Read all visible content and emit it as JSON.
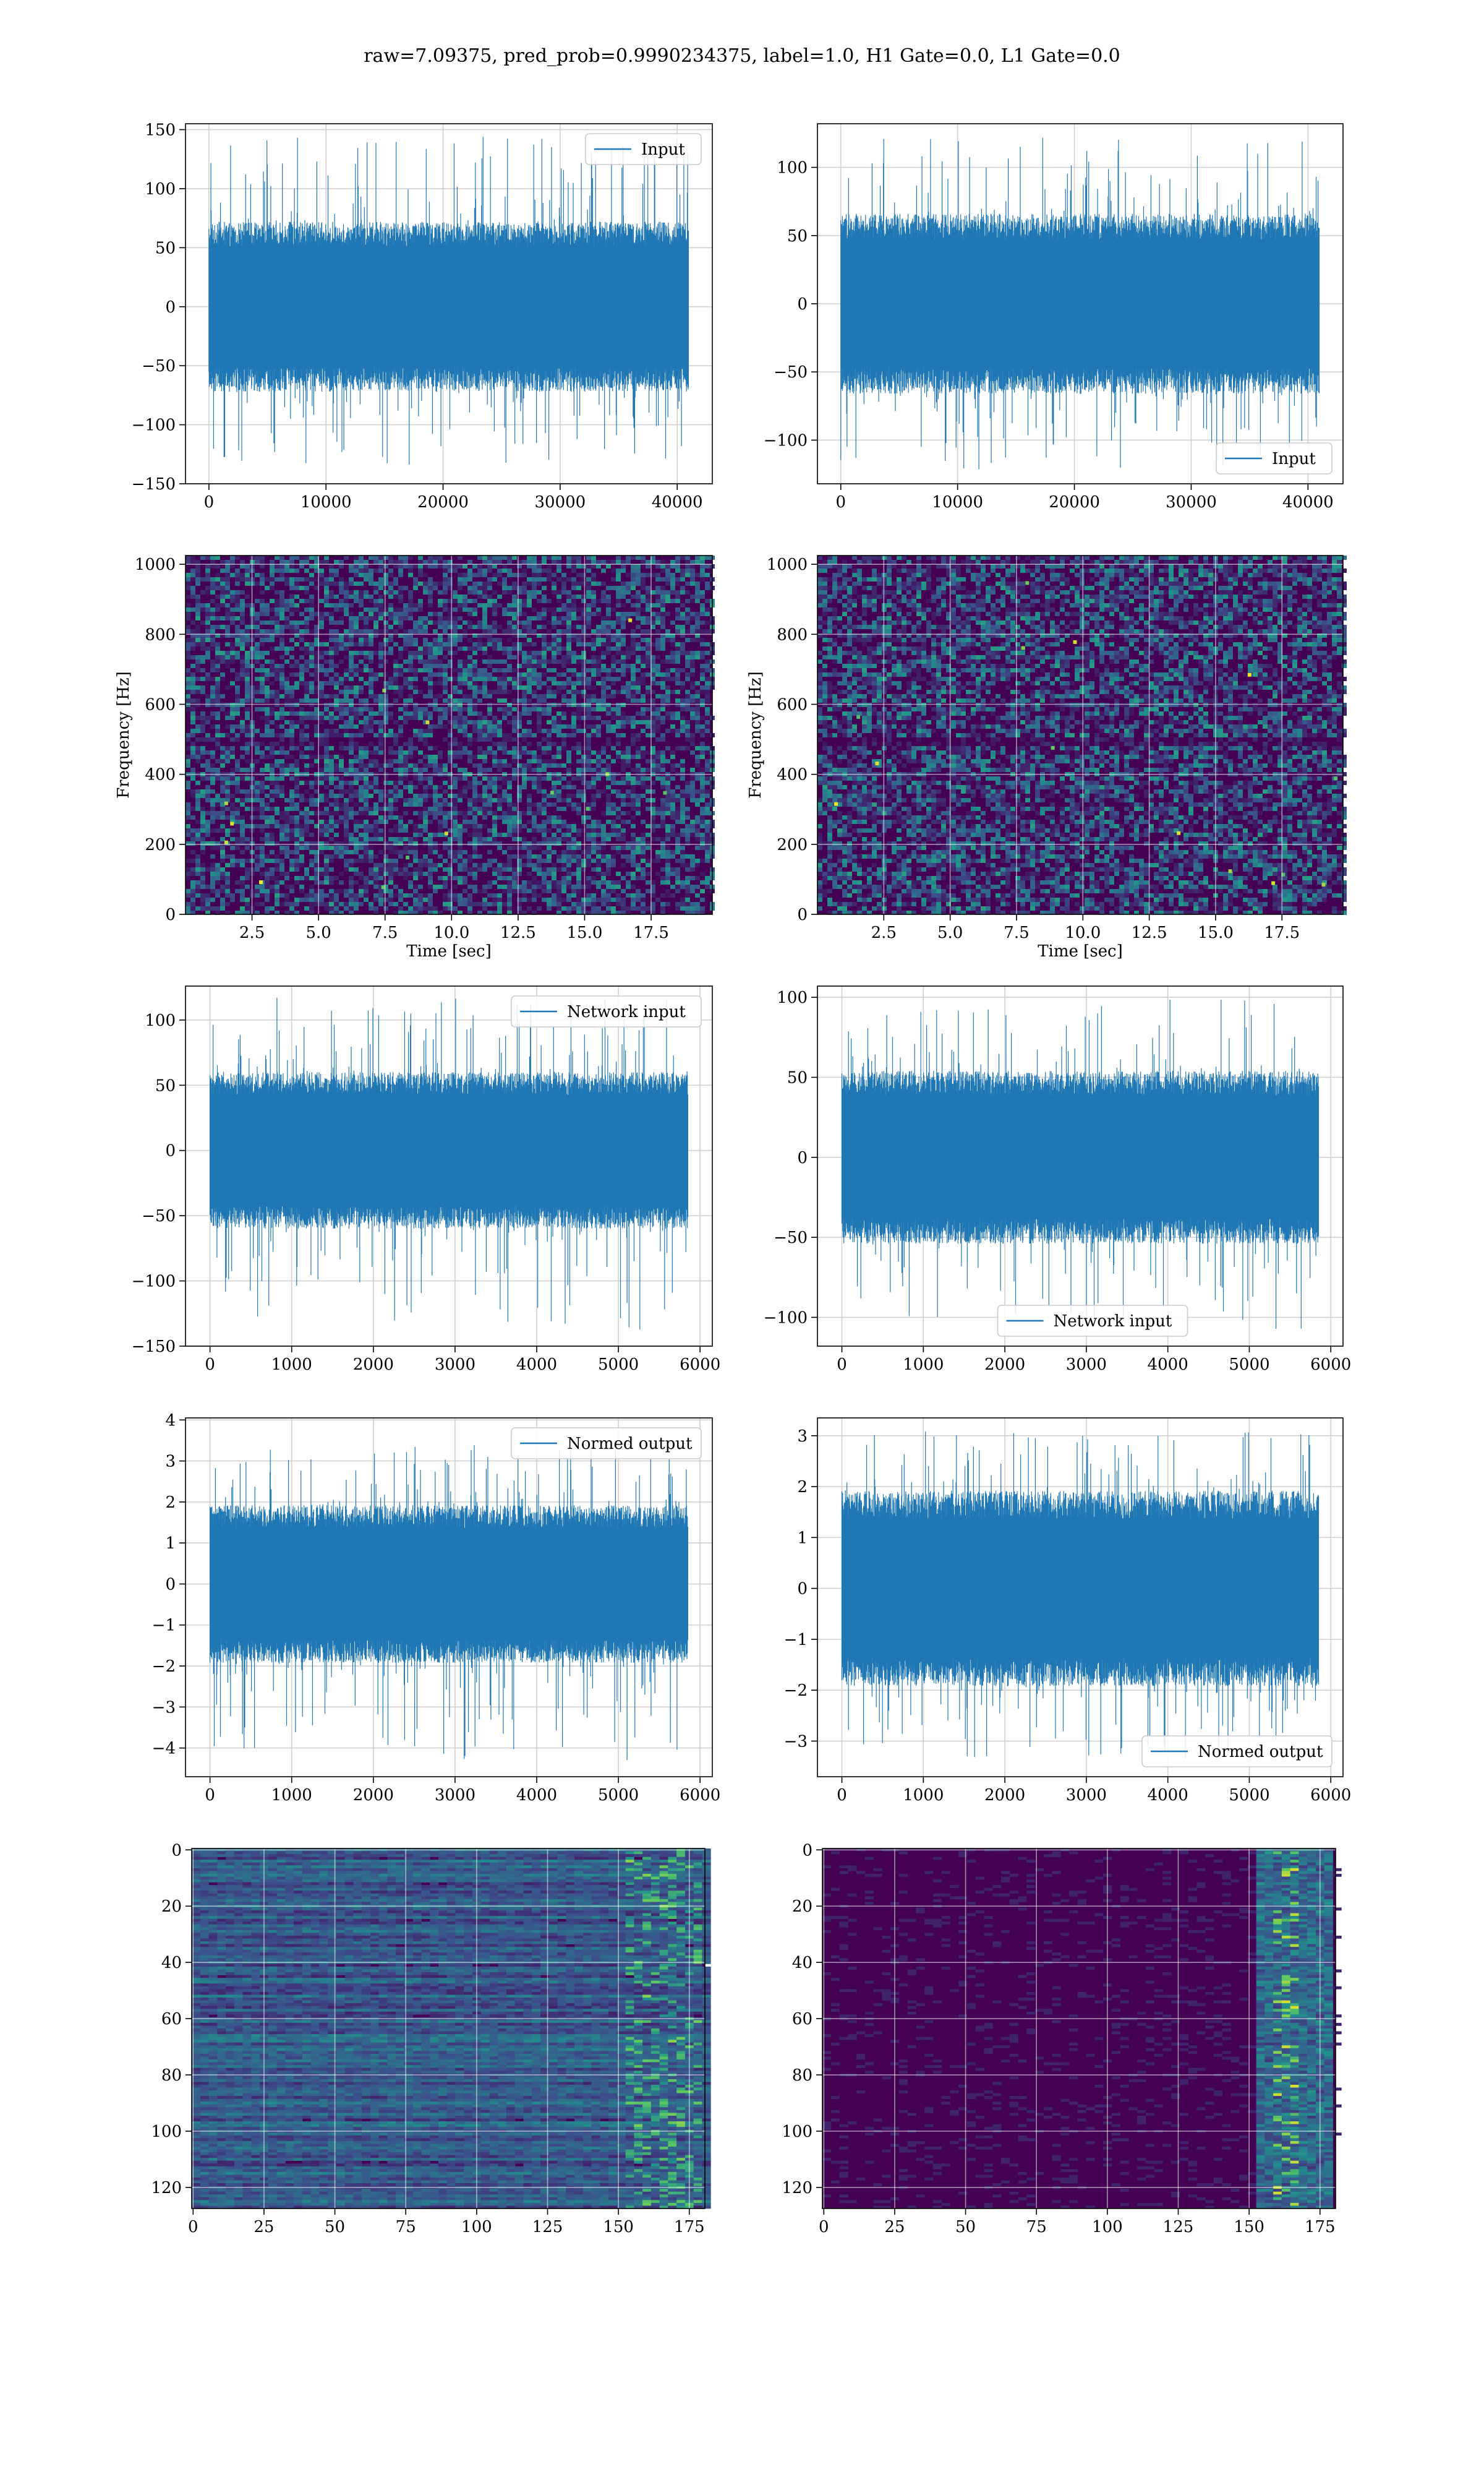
{
  "figure": {
    "title": "raw=7.09375, pred_prob=0.9990234375, label=1.0, H1 Gate=0.0, L1 Gate=0.0"
  },
  "colors": {
    "line": "#1f77b4",
    "grid": "#d0d0d0",
    "viridis_low": "#440154",
    "viridis_mid": "#21918c",
    "viridis_high": "#fde725"
  },
  "chart_data": [
    {
      "id": "p00",
      "type": "line",
      "legend": "Input",
      "legend_loc": "upper right",
      "xlim": [
        -2000,
        43000
      ],
      "ylim": [
        -150,
        155
      ],
      "xticks": [
        0,
        10000,
        20000,
        30000,
        40000
      ],
      "yticks": [
        -150,
        -100,
        -50,
        0,
        50,
        100,
        150
      ],
      "x_start": 0,
      "x_end": 40960,
      "envelope": [
        -60,
        60
      ],
      "spikes": [
        -135,
        145
      ],
      "grid": true
    },
    {
      "id": "p01",
      "type": "line",
      "legend": "Input",
      "legend_loc": "lower right",
      "xlim": [
        -2000,
        43000
      ],
      "ylim": [
        -132,
        132
      ],
      "xticks": [
        0,
        10000,
        20000,
        30000,
        40000
      ],
      "yticks": [
        -100,
        -50,
        0,
        50,
        100
      ],
      "x_start": 0,
      "x_end": 40960,
      "envelope": [
        -55,
        55
      ],
      "spikes": [
        -122,
        122
      ],
      "grid": true
    },
    {
      "id": "p10",
      "type": "heatmap",
      "xlabel": "Time [sec]",
      "ylabel": "Frequency [Hz]",
      "xlim": [
        0,
        19.8
      ],
      "ylim": [
        0,
        1025
      ],
      "xticks": [
        2.5,
        5.0,
        7.5,
        10.0,
        12.5,
        15.0,
        17.5
      ],
      "yticks": [
        0,
        200,
        400,
        600,
        800,
        1000
      ],
      "grid": true
    },
    {
      "id": "p11",
      "type": "heatmap",
      "xlabel": "Time [sec]",
      "ylabel": "Frequency [Hz]",
      "xlim": [
        0,
        19.8
      ],
      "ylim": [
        0,
        1025
      ],
      "xticks": [
        2.5,
        5.0,
        7.5,
        10.0,
        12.5,
        15.0,
        17.5
      ],
      "yticks": [
        0,
        200,
        400,
        600,
        800,
        1000
      ],
      "grid": true
    },
    {
      "id": "p20",
      "type": "line",
      "legend": "Network input",
      "legend_loc": "upper right",
      "xlim": [
        -300,
        6150
      ],
      "ylim": [
        -150,
        126
      ],
      "xticks": [
        0,
        1000,
        2000,
        3000,
        4000,
        5000,
        6000
      ],
      "yticks": [
        -150,
        -100,
        -50,
        0,
        50,
        100
      ],
      "x_start": 0,
      "x_end": 5850,
      "envelope": [
        -50,
        50
      ],
      "spikes": [
        -138,
        118
      ],
      "grid": true
    },
    {
      "id": "p21",
      "type": "line",
      "legend": "Network input",
      "legend_loc": "lower center",
      "xlim": [
        -300,
        6150
      ],
      "ylim": [
        -118,
        107
      ],
      "xticks": [
        0,
        1000,
        2000,
        3000,
        4000,
        5000,
        6000
      ],
      "yticks": [
        -100,
        -50,
        0,
        50,
        100
      ],
      "x_start": 0,
      "x_end": 5850,
      "envelope": [
        -45,
        45
      ],
      "spikes": [
        -108,
        100
      ],
      "grid": true
    },
    {
      "id": "p30",
      "type": "line",
      "legend": "Normed output",
      "legend_loc": "upper right",
      "xlim": [
        -300,
        6150
      ],
      "ylim": [
        -4.7,
        4.05
      ],
      "xticks": [
        0,
        1000,
        2000,
        3000,
        4000,
        5000,
        6000
      ],
      "yticks": [
        -4,
        -3,
        -2,
        -1,
        0,
        1,
        2,
        3,
        4
      ],
      "x_start": 0,
      "x_end": 5850,
      "envelope": [
        -1.6,
        1.6
      ],
      "spikes": [
        -4.3,
        3.4
      ],
      "grid": true
    },
    {
      "id": "p31",
      "type": "line",
      "legend": "Normed output",
      "legend_loc": "lower right",
      "xlim": [
        -300,
        6150
      ],
      "ylim": [
        -3.7,
        3.35
      ],
      "xticks": [
        0,
        1000,
        2000,
        3000,
        4000,
        5000,
        6000
      ],
      "yticks": [
        -3,
        -2,
        -1,
        0,
        1,
        2,
        3
      ],
      "x_start": 0,
      "x_end": 5850,
      "envelope": [
        -1.6,
        1.6
      ],
      "spikes": [
        -3.4,
        3.1
      ],
      "grid": true
    },
    {
      "id": "p40",
      "type": "heatmap",
      "origin": "upper",
      "xlim": [
        -0.5,
        180.5
      ],
      "ylim": [
        127.5,
        -0.5
      ],
      "xticks": [
        0,
        25,
        50,
        75,
        100,
        125,
        150,
        175
      ],
      "yticks": [
        0,
        20,
        40,
        60,
        80,
        100,
        120
      ],
      "grid": true
    },
    {
      "id": "p41",
      "type": "heatmap",
      "origin": "upper",
      "xlim": [
        -0.5,
        180.5
      ],
      "ylim": [
        127.5,
        -0.5
      ],
      "xticks": [
        0,
        25,
        50,
        75,
        100,
        125,
        150,
        175
      ],
      "yticks": [
        0,
        20,
        40,
        60,
        80,
        100,
        120
      ],
      "grid": true
    }
  ]
}
